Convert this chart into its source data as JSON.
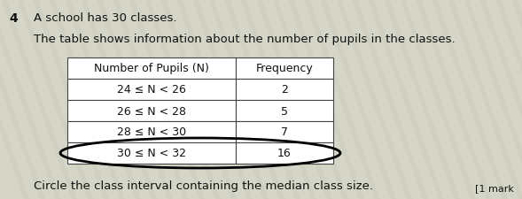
{
  "question_number": "4",
  "line1": "A school has 30 classes.",
  "line2": "The table shows information about the number of pupils in the classes.",
  "col1_header": "Number of Pupils (N)",
  "col2_header": "Frequency",
  "rows": [
    {
      "interval": "24 ≤ N < 26",
      "frequency": "2"
    },
    {
      "interval": "26 ≤ N < 28",
      "frequency": "5"
    },
    {
      "interval": "28 ≤ N < 30",
      "frequency": "7"
    },
    {
      "interval": "30 ≤ N < 32",
      "frequency": "16"
    }
  ],
  "circled_row_index": 3,
  "footer": "Circle the class interval containing the median class size.",
  "bg_color": "#d8d8cc",
  "table_bg": "#ffffff",
  "stripe_color1": "#c8c8bb",
  "stripe_color2": "#e0e0d0",
  "border_color": "#444444",
  "text_color": "#111111",
  "marks_text": "[1 mark"
}
